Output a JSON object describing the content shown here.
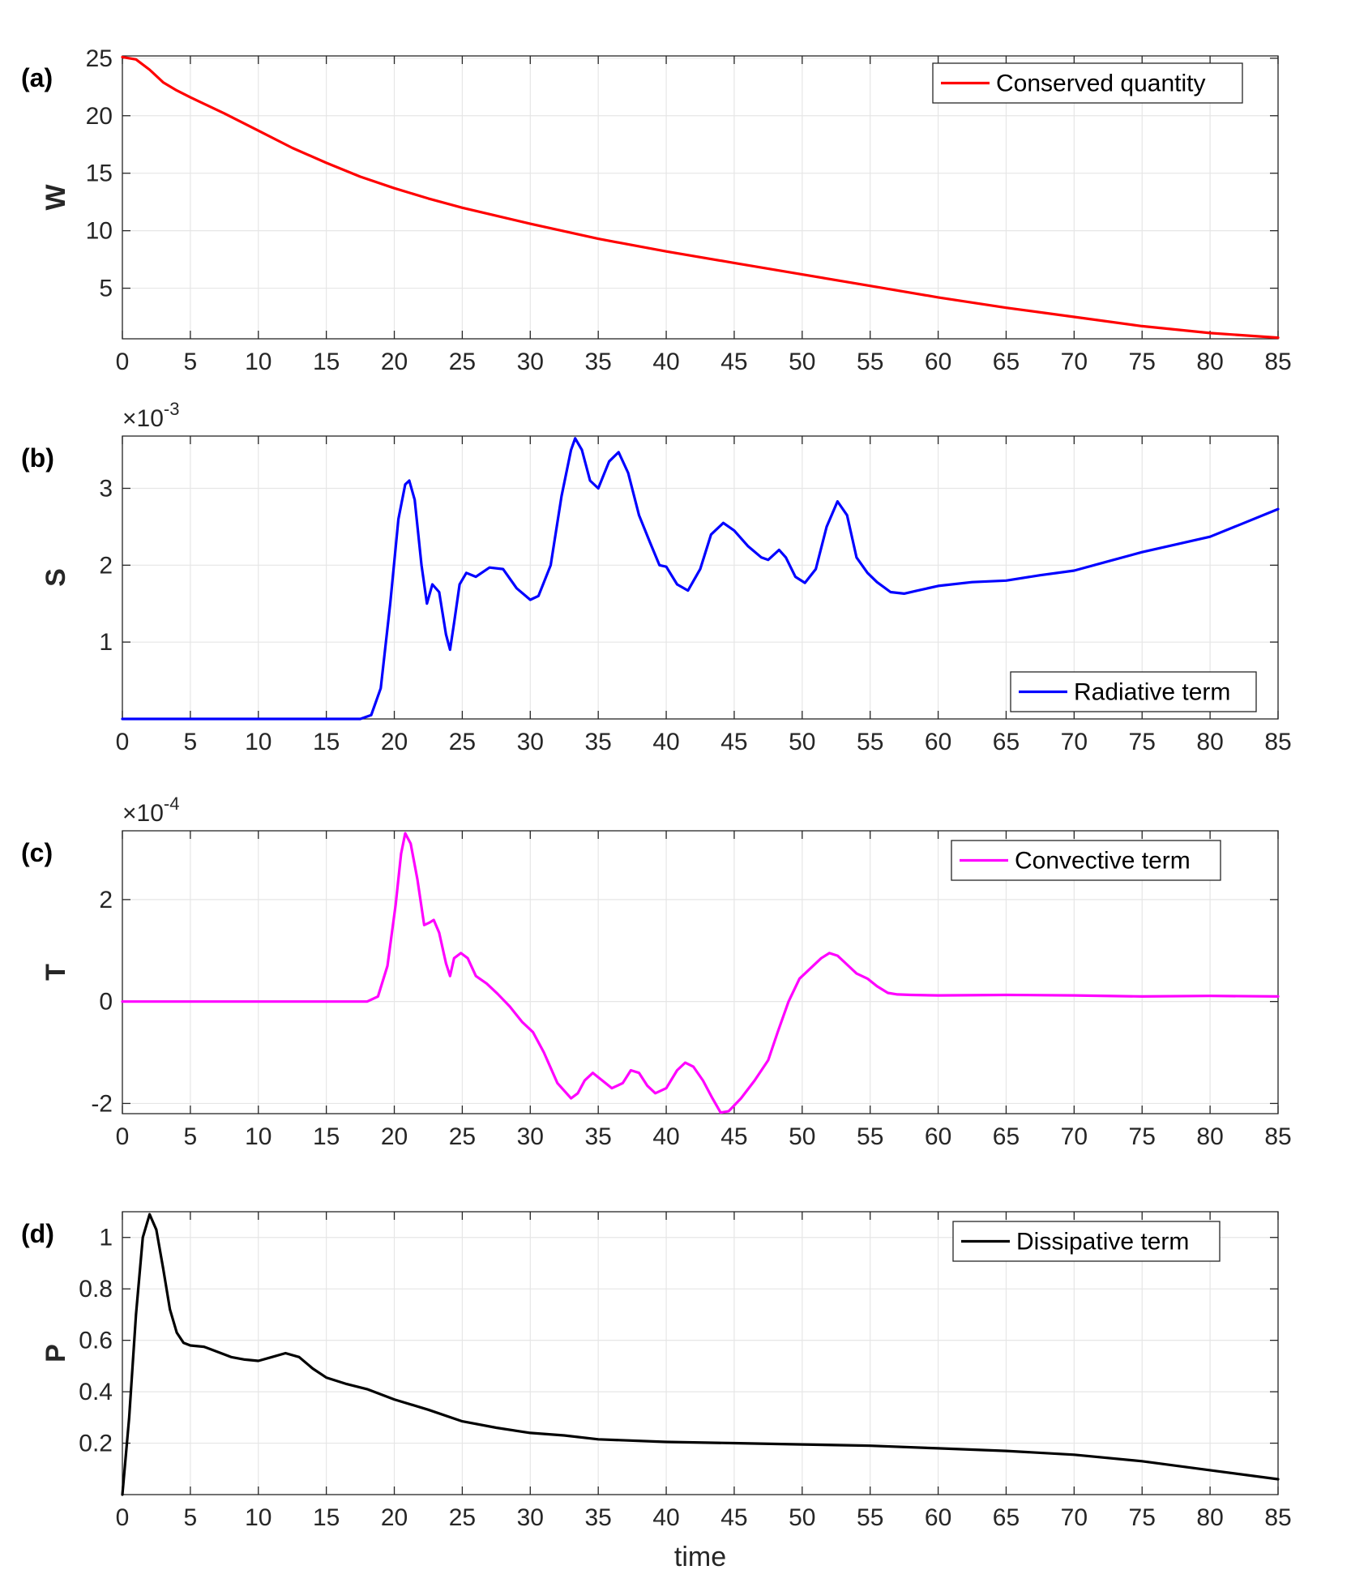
{
  "figure": {
    "xlabel": "time"
  },
  "chart_data": [
    {
      "type": "line",
      "panel_label": "(a)",
      "ylabel": "W",
      "exponent": "",
      "xlim": [
        0,
        85
      ],
      "ylim": [
        0.6,
        25.2
      ],
      "xticks": [
        0,
        5,
        10,
        15,
        20,
        25,
        30,
        35,
        40,
        45,
        50,
        55,
        60,
        65,
        70,
        75,
        80,
        85
      ],
      "yticks": [
        5,
        10,
        15,
        20,
        25
      ],
      "ytick_labels": [
        "5",
        "10",
        "15",
        "20",
        "25"
      ],
      "legend": "top-right",
      "series": [
        {
          "name": "Conserved quantity",
          "color": "#ff0000",
          "x": [
            0,
            1,
            2,
            3,
            4,
            5,
            7.5,
            10,
            12.5,
            15,
            17.5,
            20,
            22.5,
            25,
            27.5,
            30,
            35,
            40,
            45,
            50,
            55,
            60,
            65,
            70,
            75,
            80,
            85
          ],
          "y": [
            25.1,
            24.9,
            24.0,
            22.9,
            22.2,
            21.6,
            20.2,
            18.7,
            17.2,
            15.9,
            14.7,
            13.7,
            12.8,
            12.0,
            11.3,
            10.6,
            9.3,
            8.2,
            7.2,
            6.2,
            5.2,
            4.2,
            3.3,
            2.5,
            1.7,
            1.1,
            0.7
          ]
        }
      ]
    },
    {
      "type": "line",
      "panel_label": "(b)",
      "ylabel": "S",
      "exponent": "-3",
      "xlim": [
        0,
        85
      ],
      "ylim": [
        0,
        3.68
      ],
      "xticks": [
        0,
        5,
        10,
        15,
        20,
        25,
        30,
        35,
        40,
        45,
        50,
        55,
        60,
        65,
        70,
        75,
        80,
        85
      ],
      "yticks": [
        1,
        2,
        3
      ],
      "ytick_labels": [
        "1",
        "2",
        "3"
      ],
      "legend": "bottom-right",
      "series": [
        {
          "name": "Radiative term",
          "color": "#0000ff",
          "x": [
            0,
            17.5,
            18.3,
            19.0,
            19.7,
            20.3,
            20.8,
            21.1,
            21.5,
            22.0,
            22.4,
            22.8,
            23.3,
            23.8,
            24.1,
            24.4,
            24.8,
            25.3,
            26.0,
            27.0,
            28.0,
            29.0,
            30.0,
            30.6,
            31.5,
            32.3,
            33.0,
            33.3,
            33.8,
            34.4,
            35.0,
            35.8,
            36.5,
            37.2,
            38.0,
            38.8,
            39.5,
            40.0,
            40.8,
            41.6,
            42.5,
            43.3,
            44.2,
            45.0,
            46.0,
            47.0,
            47.5,
            48.3,
            48.8,
            49.5,
            50.2,
            51.0,
            51.8,
            52.6,
            53.3,
            54.0,
            54.8,
            55.5,
            56.5,
            57.5,
            58.5,
            60,
            62.5,
            65,
            67.5,
            70,
            72.5,
            75,
            77.5,
            80,
            82.5,
            85
          ],
          "y": [
            0,
            0,
            0.05,
            0.4,
            1.5,
            2.6,
            3.05,
            3.1,
            2.85,
            2.0,
            1.5,
            1.75,
            1.65,
            1.1,
            0.9,
            1.25,
            1.75,
            1.9,
            1.85,
            1.97,
            1.95,
            1.7,
            1.55,
            1.6,
            2.0,
            2.9,
            3.5,
            3.65,
            3.5,
            3.1,
            3.0,
            3.35,
            3.47,
            3.2,
            2.65,
            2.3,
            2.0,
            1.98,
            1.75,
            1.67,
            1.95,
            2.4,
            2.55,
            2.45,
            2.25,
            2.1,
            2.07,
            2.2,
            2.1,
            1.85,
            1.77,
            1.95,
            2.5,
            2.83,
            2.65,
            2.1,
            1.9,
            1.78,
            1.65,
            1.63,
            1.67,
            1.73,
            1.78,
            1.8,
            1.87,
            1.93,
            2.05,
            2.17,
            2.27,
            2.37,
            2.55,
            2.73
          ]
        }
      ]
    },
    {
      "type": "line",
      "panel_label": "(c)",
      "ylabel": "T",
      "exponent": "-4",
      "xlim": [
        0,
        85
      ],
      "ylim": [
        -2.2,
        3.35
      ],
      "xticks": [
        0,
        5,
        10,
        15,
        20,
        25,
        30,
        35,
        40,
        45,
        50,
        55,
        60,
        65,
        70,
        75,
        80,
        85
      ],
      "yticks": [
        -2,
        0,
        2
      ],
      "ytick_labels": [
        "-2",
        "0",
        "2"
      ],
      "legend": "top-right",
      "series": [
        {
          "name": "Convective term",
          "color": "#ff00ff",
          "x": [
            0,
            18.0,
            18.8,
            19.5,
            20.1,
            20.5,
            20.8,
            21.2,
            21.7,
            22.2,
            22.6,
            22.9,
            23.3,
            23.8,
            24.1,
            24.4,
            24.9,
            25.4,
            26.0,
            26.8,
            27.6,
            28.5,
            29.4,
            30.2,
            31.0,
            32.0,
            33.0,
            33.5,
            34.0,
            34.6,
            35.3,
            36.0,
            36.8,
            37.4,
            38.0,
            38.6,
            39.2,
            40.0,
            40.8,
            41.4,
            42.0,
            42.7,
            43.4,
            44.0,
            44.6,
            45.5,
            46.5,
            47.5,
            48.2,
            49.0,
            49.8,
            50.6,
            51.4,
            52.0,
            52.6,
            53.2,
            54.0,
            54.8,
            55.5,
            56.3,
            57.0,
            58.0,
            60,
            65,
            70,
            75,
            80,
            85
          ],
          "y": [
            0,
            0,
            0.1,
            0.7,
            1.9,
            2.9,
            3.3,
            3.1,
            2.4,
            1.5,
            1.55,
            1.6,
            1.35,
            0.75,
            0.5,
            0.85,
            0.95,
            0.85,
            0.5,
            0.35,
            0.15,
            -0.1,
            -0.4,
            -0.6,
            -1.0,
            -1.6,
            -1.9,
            -1.8,
            -1.55,
            -1.4,
            -1.55,
            -1.7,
            -1.6,
            -1.35,
            -1.4,
            -1.65,
            -1.8,
            -1.7,
            -1.35,
            -1.2,
            -1.28,
            -1.55,
            -1.9,
            -2.18,
            -2.15,
            -1.9,
            -1.55,
            -1.15,
            -0.6,
            0.0,
            0.45,
            0.65,
            0.85,
            0.95,
            0.9,
            0.75,
            0.55,
            0.45,
            0.3,
            0.17,
            0.14,
            0.13,
            0.12,
            0.13,
            0.12,
            0.1,
            0.11,
            0.1
          ]
        }
      ]
    },
    {
      "type": "line",
      "panel_label": "(d)",
      "ylabel": "P",
      "exponent": "",
      "xlim": [
        0,
        85
      ],
      "ylim": [
        0,
        1.1
      ],
      "xticks": [
        0,
        5,
        10,
        15,
        20,
        25,
        30,
        35,
        40,
        45,
        50,
        55,
        60,
        65,
        70,
        75,
        80,
        85
      ],
      "yticks": [
        0.2,
        0.4,
        0.6,
        0.8,
        1.0
      ],
      "ytick_labels": [
        "0.2",
        "0.4",
        "0.6",
        "0.8",
        "1"
      ],
      "legend": "top-right",
      "series": [
        {
          "name": "Dissipative term",
          "color": "#000000",
          "x": [
            0,
            0.5,
            1.0,
            1.5,
            2.0,
            2.5,
            3.0,
            3.5,
            4.0,
            4.5,
            5.0,
            6.0,
            7.0,
            8.0,
            9.0,
            10.0,
            11.0,
            12.0,
            13.0,
            14.0,
            15.0,
            16.5,
            18.0,
            20.0,
            22.5,
            25.0,
            27.5,
            30.0,
            32.5,
            35.0,
            40,
            45,
            50,
            55,
            60,
            65,
            70,
            75,
            80,
            85
          ],
          "y": [
            0.0,
            0.3,
            0.7,
            1.0,
            1.09,
            1.03,
            0.88,
            0.72,
            0.63,
            0.59,
            0.58,
            0.575,
            0.555,
            0.535,
            0.525,
            0.52,
            0.535,
            0.55,
            0.535,
            0.49,
            0.455,
            0.43,
            0.41,
            0.37,
            0.33,
            0.285,
            0.26,
            0.24,
            0.23,
            0.215,
            0.205,
            0.2,
            0.195,
            0.19,
            0.18,
            0.17,
            0.155,
            0.13,
            0.095,
            0.06
          ]
        }
      ]
    }
  ]
}
